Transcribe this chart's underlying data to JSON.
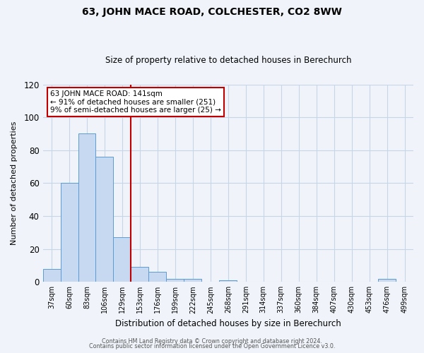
{
  "title": "63, JOHN MACE ROAD, COLCHESTER, CO2 8WW",
  "subtitle": "Size of property relative to detached houses in Berechurch",
  "xlabel": "Distribution of detached houses by size in Berechurch",
  "ylabel": "Number of detached properties",
  "bar_labels": [
    "37sqm",
    "60sqm",
    "83sqm",
    "106sqm",
    "129sqm",
    "153sqm",
    "176sqm",
    "199sqm",
    "222sqm",
    "245sqm",
    "268sqm",
    "291sqm",
    "314sqm",
    "337sqm",
    "360sqm",
    "384sqm",
    "407sqm",
    "430sqm",
    "453sqm",
    "476sqm",
    "499sqm"
  ],
  "bar_values": [
    8,
    60,
    90,
    76,
    27,
    9,
    6,
    2,
    2,
    0,
    1,
    0,
    0,
    0,
    0,
    0,
    0,
    0,
    0,
    2,
    0
  ],
  "bar_color": "#c6d9f1",
  "bar_edge_color": "#5b9bd5",
  "vline_color": "#c00000",
  "annotation_title": "63 JOHN MACE ROAD: 141sqm",
  "annotation_line1": "← 91% of detached houses are smaller (251)",
  "annotation_line2": "9% of semi-detached houses are larger (25) →",
  "annotation_box_color": "#ffffff",
  "annotation_box_edge": "#c00000",
  "ylim": [
    0,
    120
  ],
  "yticks": [
    0,
    20,
    40,
    60,
    80,
    100,
    120
  ],
  "footnote1": "Contains HM Land Registry data © Crown copyright and database right 2024.",
  "footnote2": "Contains public sector information licensed under the Open Government Licence v3.0.",
  "background_color": "#f0f4fa",
  "grid_color": "#c8d4e8"
}
